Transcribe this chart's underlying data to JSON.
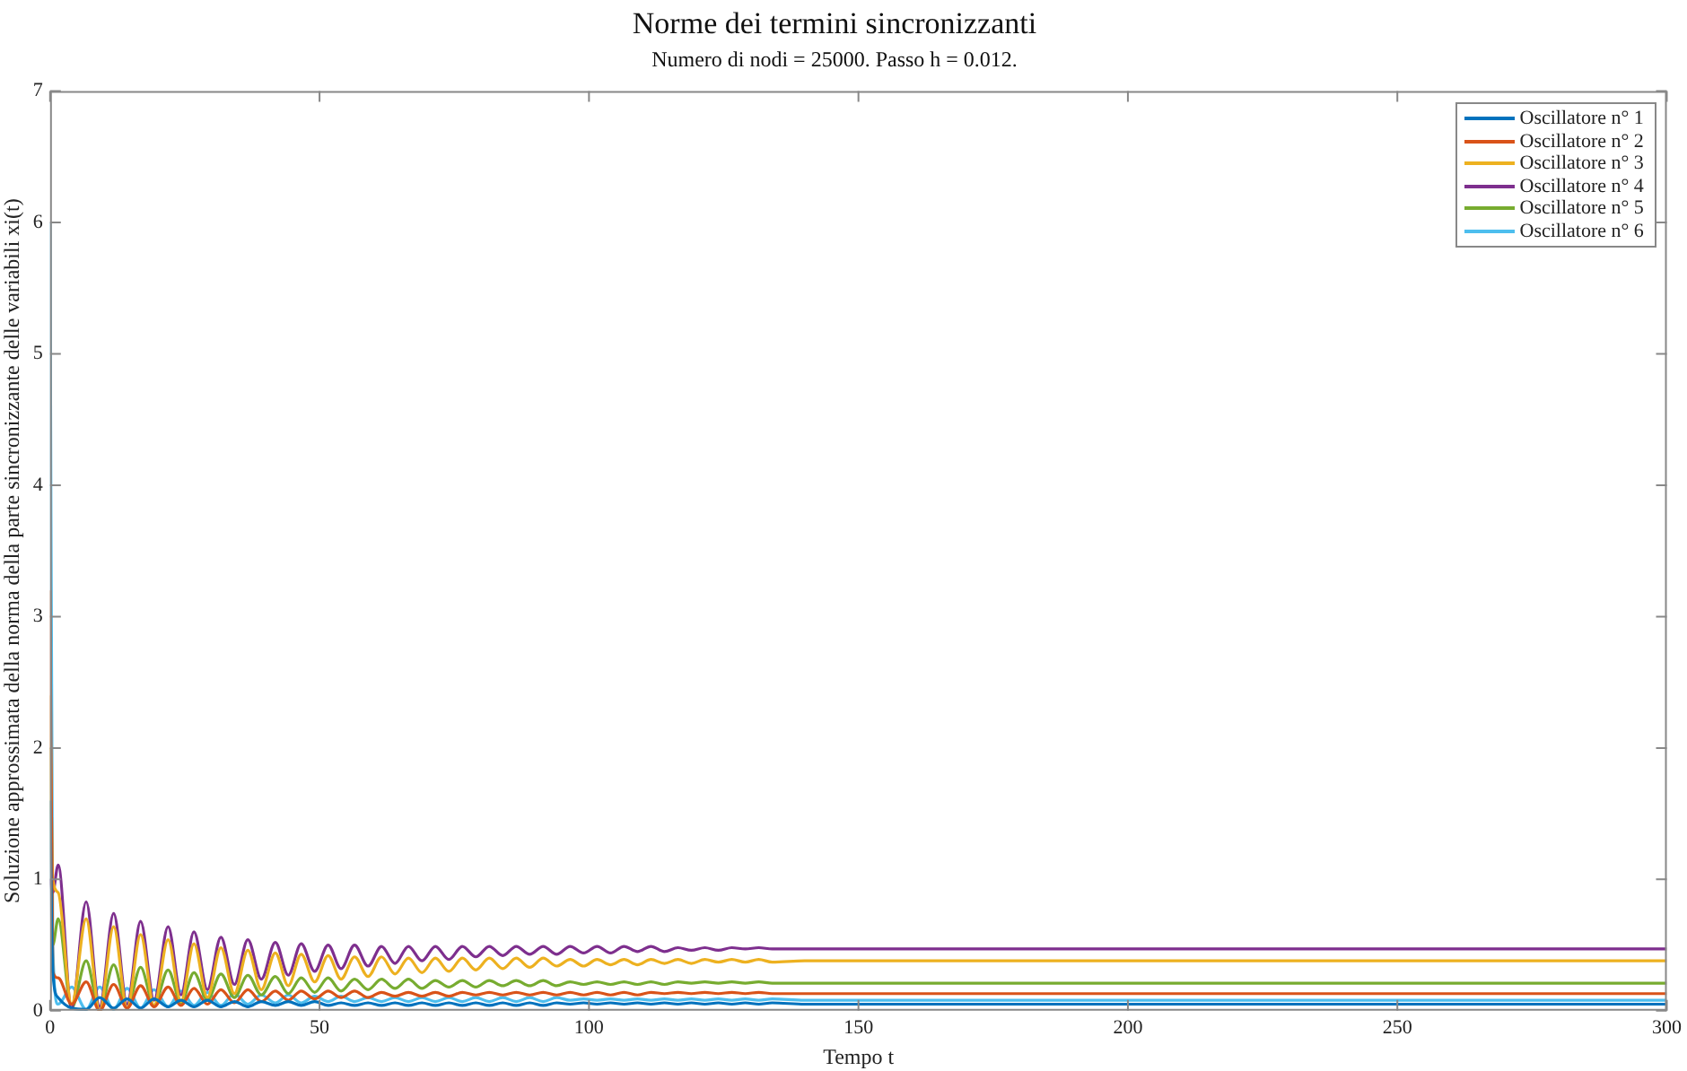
{
  "chart_data": {
    "type": "line",
    "title": "Norme dei termini sincronizzanti",
    "subtitle": "Numero di nodi = 25000. Passo h = 0.012.",
    "xlabel": "Tempo t",
    "ylabel": "Soluzione approssimata della norma della parte sincronizzante delle variabili xi(t)",
    "x": [
      0,
      0.5,
      1.5,
      4,
      6.7,
      9.2,
      11.8,
      14.3,
      16.8,
      19.3,
      21.9,
      24.3,
      26.7,
      29.2,
      31.7,
      34.2,
      36.7,
      39.2,
      41.8,
      44.2,
      46.6,
      49.1,
      51.6,
      54,
      56.5,
      59,
      61.5,
      64,
      66.5,
      69,
      71.5,
      74,
      76.5,
      79,
      81.5,
      84,
      86.5,
      89,
      91.5,
      94,
      96.5,
      99,
      101.5,
      104,
      106.5,
      109,
      111.5,
      114,
      116.5,
      119,
      121.5,
      124,
      126.5,
      129,
      131.5,
      134,
      140,
      150,
      175,
      200,
      250,
      300
    ],
    "series": [
      {
        "name": "Oscillatore n° 1",
        "color": "#0072bd",
        "values": [
          1.6,
          0.3,
          0.1,
          0.02,
          0.01,
          0.1,
          0.02,
          0.09,
          0.02,
          0.09,
          0.03,
          0.08,
          0.03,
          0.08,
          0.03,
          0.07,
          0.03,
          0.07,
          0.04,
          0.07,
          0.04,
          0.07,
          0.04,
          0.06,
          0.04,
          0.06,
          0.04,
          0.06,
          0.04,
          0.06,
          0.04,
          0.06,
          0.04,
          0.06,
          0.04,
          0.06,
          0.04,
          0.06,
          0.04,
          0.06,
          0.05,
          0.06,
          0.05,
          0.06,
          0.05,
          0.06,
          0.05,
          0.06,
          0.05,
          0.06,
          0.05,
          0.06,
          0.05,
          0.06,
          0.05,
          0.06,
          0.05,
          0.05,
          0.05,
          0.05,
          0.05,
          0.05
        ]
      },
      {
        "name": "Oscillatore n° 2",
        "color": "#d95319",
        "values": [
          3.2,
          0.3,
          0.25,
          0.05,
          0.22,
          0.0,
          0.2,
          0.02,
          0.19,
          0.03,
          0.18,
          0.04,
          0.17,
          0.05,
          0.16,
          0.06,
          0.16,
          0.07,
          0.15,
          0.08,
          0.15,
          0.09,
          0.15,
          0.1,
          0.15,
          0.1,
          0.14,
          0.11,
          0.14,
          0.11,
          0.14,
          0.11,
          0.14,
          0.12,
          0.14,
          0.12,
          0.14,
          0.12,
          0.14,
          0.12,
          0.14,
          0.12,
          0.14,
          0.12,
          0.14,
          0.12,
          0.14,
          0.13,
          0.14,
          0.13,
          0.14,
          0.13,
          0.14,
          0.13,
          0.14,
          0.13,
          0.13,
          0.13,
          0.13,
          0.13,
          0.13,
          0.13
        ]
      },
      {
        "name": "Oscillatore n° 3",
        "color": "#edb120",
        "values": [
          2.4,
          1.0,
          0.9,
          0.05,
          0.7,
          0.0,
          0.64,
          0.02,
          0.58,
          0.04,
          0.54,
          0.07,
          0.51,
          0.1,
          0.48,
          0.13,
          0.46,
          0.16,
          0.44,
          0.19,
          0.43,
          0.22,
          0.42,
          0.24,
          0.41,
          0.26,
          0.41,
          0.28,
          0.4,
          0.29,
          0.4,
          0.3,
          0.4,
          0.31,
          0.4,
          0.32,
          0.4,
          0.33,
          0.4,
          0.34,
          0.39,
          0.34,
          0.39,
          0.35,
          0.39,
          0.35,
          0.39,
          0.36,
          0.39,
          0.36,
          0.39,
          0.37,
          0.39,
          0.37,
          0.39,
          0.37,
          0.38,
          0.38,
          0.38,
          0.38,
          0.38,
          0.38
        ]
      },
      {
        "name": "Oscillatore n° 4",
        "color": "#7e2f8e",
        "values": [
          1.0,
          0.9,
          1.11,
          0.02,
          0.83,
          0.03,
          0.74,
          0.05,
          0.68,
          0.08,
          0.64,
          0.12,
          0.6,
          0.16,
          0.56,
          0.2,
          0.54,
          0.24,
          0.52,
          0.27,
          0.51,
          0.3,
          0.5,
          0.32,
          0.5,
          0.34,
          0.49,
          0.36,
          0.49,
          0.38,
          0.49,
          0.39,
          0.49,
          0.41,
          0.49,
          0.42,
          0.49,
          0.43,
          0.49,
          0.43,
          0.49,
          0.44,
          0.49,
          0.44,
          0.49,
          0.45,
          0.49,
          0.45,
          0.48,
          0.46,
          0.48,
          0.46,
          0.48,
          0.47,
          0.48,
          0.47,
          0.47,
          0.47,
          0.47,
          0.47,
          0.47,
          0.47
        ]
      },
      {
        "name": "Oscillatore n° 5",
        "color": "#77ac30",
        "values": [
          2.0,
          0.5,
          0.7,
          0.02,
          0.38,
          0.0,
          0.35,
          0.02,
          0.33,
          0.04,
          0.31,
          0.06,
          0.29,
          0.08,
          0.28,
          0.1,
          0.27,
          0.12,
          0.26,
          0.13,
          0.25,
          0.14,
          0.25,
          0.15,
          0.24,
          0.16,
          0.24,
          0.17,
          0.24,
          0.17,
          0.23,
          0.18,
          0.23,
          0.18,
          0.23,
          0.19,
          0.23,
          0.19,
          0.23,
          0.19,
          0.22,
          0.2,
          0.22,
          0.2,
          0.22,
          0.2,
          0.22,
          0.2,
          0.22,
          0.21,
          0.22,
          0.21,
          0.22,
          0.21,
          0.22,
          0.21,
          0.21,
          0.21,
          0.21,
          0.21,
          0.21,
          0.21
        ]
      },
      {
        "name": "Oscillatore n° 6",
        "color": "#4dbeee",
        "values": [
          6.0,
          0.5,
          0.05,
          0.18,
          0.01,
          0.18,
          0.01,
          0.17,
          0.02,
          0.16,
          0.03,
          0.15,
          0.04,
          0.14,
          0.04,
          0.13,
          0.05,
          0.12,
          0.06,
          0.12,
          0.06,
          0.11,
          0.07,
          0.11,
          0.07,
          0.1,
          0.07,
          0.1,
          0.07,
          0.1,
          0.07,
          0.1,
          0.07,
          0.1,
          0.07,
          0.1,
          0.07,
          0.1,
          0.07,
          0.1,
          0.08,
          0.09,
          0.08,
          0.09,
          0.08,
          0.09,
          0.08,
          0.09,
          0.08,
          0.09,
          0.08,
          0.09,
          0.08,
          0.09,
          0.08,
          0.09,
          0.08,
          0.08,
          0.08,
          0.08,
          0.08,
          0.08
        ]
      }
    ],
    "xlim": [
      0,
      300
    ],
    "xticks": [
      0,
      50,
      100,
      150,
      200,
      250,
      300
    ],
    "ylim": [
      0,
      7
    ],
    "yticks": [
      0,
      1,
      2,
      3,
      4,
      5,
      6,
      7
    ],
    "grid": false,
    "legend": "top right",
    "marker": "none",
    "line_style": "solid"
  }
}
